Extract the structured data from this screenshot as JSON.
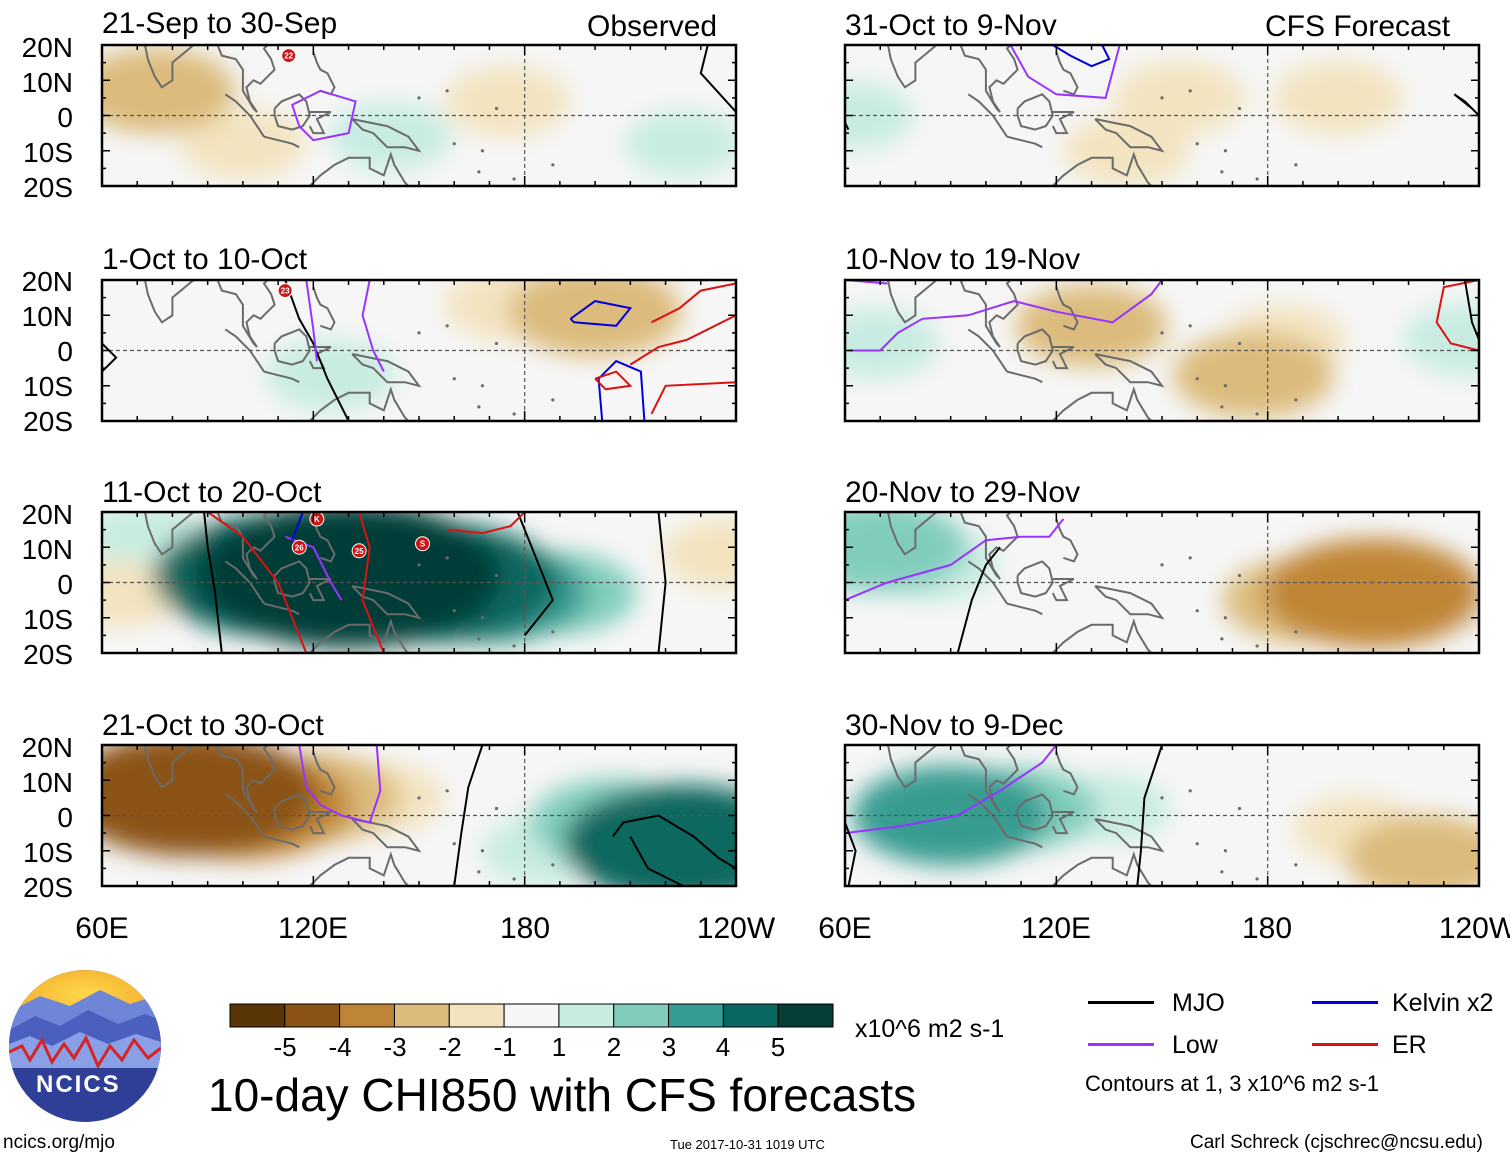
{
  "chart_data": {
    "type": "heatmap",
    "title": "10-day CHI850 with CFS forecasts",
    "variable": "CHI850",
    "units": "x10^6 m2 s-1",
    "x_ticks": [
      "60E",
      "120E",
      "180",
      "120W"
    ],
    "y_ticks": [
      "20N",
      "10N",
      "0",
      "10S",
      "20S"
    ],
    "lon_range": [
      60,
      240
    ],
    "lat_range": [
      -20,
      20
    ],
    "column_labels": [
      "Observed",
      "CFS Forecast"
    ],
    "panels": [
      {
        "title": "21-Sep to 30-Sep",
        "source": "Observed",
        "anomalies": [
          {
            "lon": 75,
            "lat": 7,
            "value": -2.3
          },
          {
            "lon": 100,
            "lat": -8,
            "value": -1.5
          },
          {
            "lon": 175,
            "lat": 4,
            "value": -1.5
          },
          {
            "lon": 142,
            "lat": -6,
            "value": 1.4
          },
          {
            "lon": 225,
            "lat": -8,
            "value": 1.3
          }
        ]
      },
      {
        "title": "1-Oct to 10-Oct",
        "source": "Observed",
        "anomalies": [
          {
            "lon": 200,
            "lat": 11,
            "value": -2.6
          },
          {
            "lon": 175,
            "lat": 13,
            "value": -1.5
          },
          {
            "lon": 125,
            "lat": -7,
            "value": 1.6
          }
        ]
      },
      {
        "title": "11-Oct to 20-Oct",
        "source": "Observed",
        "anomalies": [
          {
            "lon": 130,
            "lat": 2,
            "value": 5.6
          },
          {
            "lon": 110,
            "lat": 2,
            "value": 4.3
          },
          {
            "lon": 155,
            "lat": 0,
            "value": 4.2
          },
          {
            "lon": 170,
            "lat": -3,
            "value": 3.1
          },
          {
            "lon": 190,
            "lat": -3,
            "value": 2.1
          },
          {
            "lon": 72,
            "lat": 13,
            "value": 1.3
          },
          {
            "lon": 66,
            "lat": -3,
            "value": -1.3
          },
          {
            "lon": 237,
            "lat": 8,
            "value": -1.5
          }
        ]
      },
      {
        "title": "21-Oct to 30-Oct",
        "source": "Observed",
        "anomalies": [
          {
            "lon": 85,
            "lat": 6,
            "value": -4.4
          },
          {
            "lon": 100,
            "lat": 3,
            "value": -3.6
          },
          {
            "lon": 120,
            "lat": 5,
            "value": -2.6
          },
          {
            "lon": 140,
            "lat": 5,
            "value": -1.4
          },
          {
            "lon": 225,
            "lat": -8,
            "value": 4.1
          },
          {
            "lon": 205,
            "lat": -2,
            "value": 2.4
          },
          {
            "lon": 185,
            "lat": -10,
            "value": 1.4
          }
        ]
      },
      {
        "title": "31-Oct to 9-Nov",
        "source": "CFS Forecast",
        "anomalies": [
          {
            "lon": 155,
            "lat": 5,
            "value": -1.6
          },
          {
            "lon": 200,
            "lat": 5,
            "value": -1.6
          },
          {
            "lon": 140,
            "lat": -10,
            "value": -1.5
          },
          {
            "lon": 63,
            "lat": 0,
            "value": 1.3
          }
        ]
      },
      {
        "title": "10-Nov to 19-Nov",
        "source": "CFS Forecast",
        "anomalies": [
          {
            "lon": 130,
            "lat": 7,
            "value": -2.1
          },
          {
            "lon": 176,
            "lat": -7,
            "value": -2.3
          },
          {
            "lon": 185,
            "lat": 3,
            "value": -1.4
          },
          {
            "lon": 69,
            "lat": 2,
            "value": 1.5
          },
          {
            "lon": 237,
            "lat": 3,
            "value": 1.6
          }
        ]
      },
      {
        "title": "20-Nov to 29-Nov",
        "source": "CFS Forecast",
        "anomalies": [
          {
            "lon": 70,
            "lat": 10,
            "value": 2.6
          },
          {
            "lon": 85,
            "lat": 5,
            "value": 1.6
          },
          {
            "lon": 210,
            "lat": -3,
            "value": -3.6
          },
          {
            "lon": 190,
            "lat": -5,
            "value": -2.3
          },
          {
            "lon": 225,
            "lat": -5,
            "value": -1.6
          }
        ]
      },
      {
        "title": "30-Nov to 9-Dec",
        "source": "CFS Forecast",
        "anomalies": [
          {
            "lon": 90,
            "lat": 0,
            "value": 3.1
          },
          {
            "lon": 110,
            "lat": 2,
            "value": 2.1
          },
          {
            "lon": 135,
            "lat": 2,
            "value": 1.4
          },
          {
            "lon": 225,
            "lat": -12,
            "value": -2.3
          },
          {
            "lon": 205,
            "lat": -4,
            "value": -1.4
          }
        ]
      }
    ],
    "colorbar": {
      "tick_labels": [
        "-5",
        "-4",
        "-3",
        "-2",
        "-1",
        "1",
        "2",
        "3",
        "4",
        "5"
      ],
      "colors": [
        "#5a3508",
        "#8b5313",
        "#bf8536",
        "#dcbb7b",
        "#f3e3bf",
        "#f6f6f6",
        "#c8ece2",
        "#80cdbd",
        "#379c91",
        "#08685f",
        "#063e37"
      ]
    },
    "contour_legend": [
      {
        "label": "MJO",
        "color": "#000000"
      },
      {
        "label": "Kelvin x2",
        "color": "#0000dd"
      },
      {
        "label": "Low",
        "color": "#9933ff"
      },
      {
        "label": "ER",
        "color": "#dd1111"
      }
    ],
    "contour_note": "Contours at 1, 3 x10^6 m2 s-1",
    "storms": [
      {
        "panel": 0,
        "label": "22"
      },
      {
        "panel": 1,
        "label": "23"
      },
      {
        "panel": 2,
        "label": "K"
      },
      {
        "panel": 2,
        "label": "26"
      },
      {
        "panel": 2,
        "label": "25"
      },
      {
        "panel": 2,
        "label": "S"
      }
    ]
  },
  "footer": {
    "logo_text": "NCICS",
    "site": "ncics.org/mjo",
    "timestamp": "Tue 2017-10-31 1019 UTC",
    "author": "Carl Schreck (cjschrec@ncsu.edu)"
  }
}
